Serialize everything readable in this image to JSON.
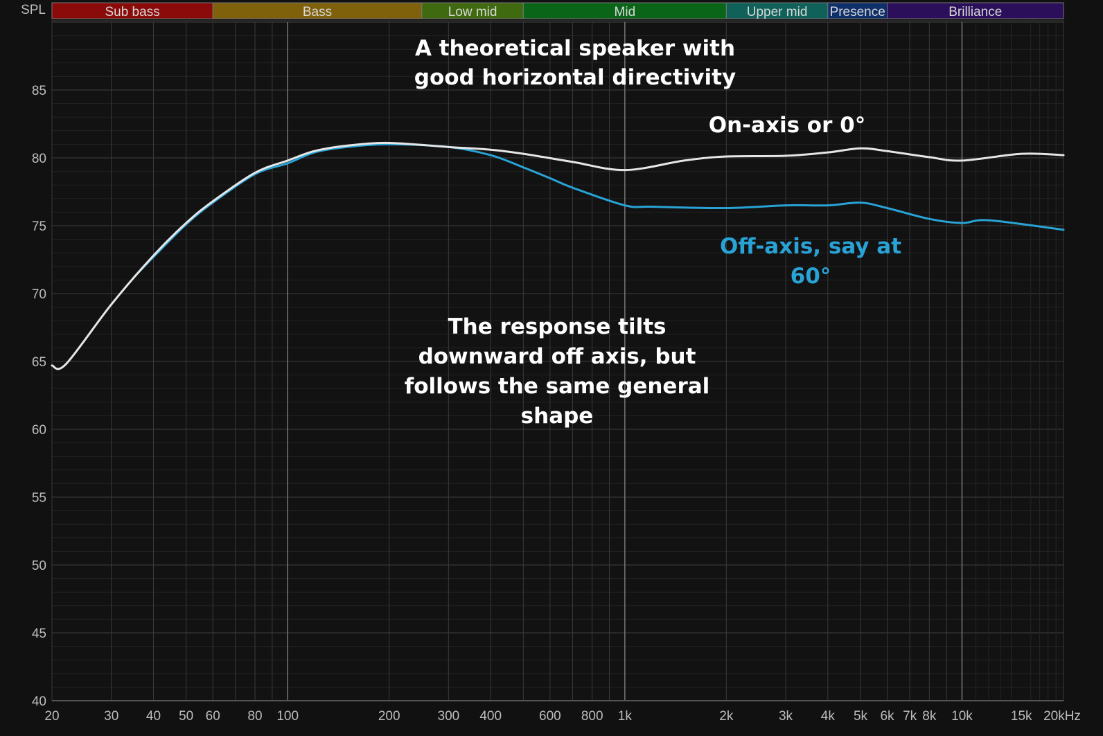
{
  "chart_data": {
    "type": "line",
    "title": "A theoretical speaker with good horizontal directivity",
    "ylabel": "SPL",
    "xlabel": "",
    "x_scale": "log",
    "xlim": [
      20,
      20000
    ],
    "ylim": [
      40,
      90
    ],
    "grid": true,
    "y_ticks": [
      40,
      45,
      50,
      55,
      60,
      65,
      70,
      75,
      80,
      85
    ],
    "x_ticks": [
      {
        "v": 20,
        "l": "20"
      },
      {
        "v": 30,
        "l": "30"
      },
      {
        "v": 40,
        "l": "40"
      },
      {
        "v": 50,
        "l": "50"
      },
      {
        "v": 60,
        "l": "60"
      },
      {
        "v": 80,
        "l": "80"
      },
      {
        "v": 100,
        "l": "100"
      },
      {
        "v": 200,
        "l": "200"
      },
      {
        "v": 300,
        "l": "300"
      },
      {
        "v": 400,
        "l": "400"
      },
      {
        "v": 600,
        "l": "600"
      },
      {
        "v": 800,
        "l": "800"
      },
      {
        "v": 1000,
        "l": "1k"
      },
      {
        "v": 2000,
        "l": "2k"
      },
      {
        "v": 3000,
        "l": "3k"
      },
      {
        "v": 4000,
        "l": "4k"
      },
      {
        "v": 5000,
        "l": "5k"
      },
      {
        "v": 6000,
        "l": "6k"
      },
      {
        "v": 7000,
        "l": "7k"
      },
      {
        "v": 8000,
        "l": "8k"
      },
      {
        "v": 10000,
        "l": "10k"
      },
      {
        "v": 15000,
        "l": "15k"
      },
      {
        "v": 20000,
        "l": "20kHz"
      }
    ],
    "bands": [
      {
        "name": "Sub bass",
        "from": 20,
        "to": 60,
        "color": "#8b0a0a"
      },
      {
        "name": "Bass",
        "from": 60,
        "to": 250,
        "color": "#80610b"
      },
      {
        "name": "Low mid",
        "from": 250,
        "to": 500,
        "color": "#3f6a10"
      },
      {
        "name": "Mid",
        "from": 500,
        "to": 2000,
        "color": "#0b6518"
      },
      {
        "name": "Upper mid",
        "from": 2000,
        "to": 4000,
        "color": "#0f6159"
      },
      {
        "name": "Presence",
        "from": 4000,
        "to": 6000,
        "color": "#0f2f6a"
      },
      {
        "name": "Brilliance",
        "from": 6000,
        "to": 20000,
        "color": "#2b0f5a"
      }
    ],
    "series": [
      {
        "name": "On-axis or 0°",
        "color": "#e6e6e6",
        "points": [
          [
            20,
            64.7
          ],
          [
            22,
            64.8
          ],
          [
            30,
            69.2
          ],
          [
            40,
            72.8
          ],
          [
            50,
            75.2
          ],
          [
            60,
            76.8
          ],
          [
            80,
            78.9
          ],
          [
            100,
            79.8
          ],
          [
            120,
            80.5
          ],
          [
            150,
            80.9
          ],
          [
            200,
            81.1
          ],
          [
            300,
            80.8
          ],
          [
            400,
            80.6
          ],
          [
            500,
            80.3
          ],
          [
            700,
            79.7
          ],
          [
            1000,
            79.1
          ],
          [
            1500,
            79.8
          ],
          [
            2000,
            80.1
          ],
          [
            3000,
            80.15
          ],
          [
            4000,
            80.4
          ],
          [
            5000,
            80.7
          ],
          [
            6000,
            80.5
          ],
          [
            8000,
            80.05
          ],
          [
            10000,
            79.8
          ],
          [
            15000,
            80.3
          ],
          [
            20000,
            80.2
          ]
        ]
      },
      {
        "name": "Off-axis, say at 60°",
        "color": "#29a3d6",
        "points": [
          [
            35,
            71.2
          ],
          [
            40,
            72.7
          ],
          [
            50,
            75.1
          ],
          [
            60,
            76.7
          ],
          [
            80,
            78.8
          ],
          [
            100,
            79.6
          ],
          [
            120,
            80.4
          ],
          [
            150,
            80.8
          ],
          [
            200,
            81.0
          ],
          [
            300,
            80.8
          ],
          [
            400,
            80.2
          ],
          [
            500,
            79.3
          ],
          [
            600,
            78.5
          ],
          [
            700,
            77.8
          ],
          [
            1000,
            76.5
          ],
          [
            1200,
            76.4
          ],
          [
            2000,
            76.3
          ],
          [
            3000,
            76.5
          ],
          [
            4000,
            76.5
          ],
          [
            5000,
            76.7
          ],
          [
            6000,
            76.3
          ],
          [
            8000,
            75.5
          ],
          [
            10000,
            75.2
          ],
          [
            12000,
            75.4
          ],
          [
            20000,
            74.7
          ]
        ]
      }
    ],
    "annotations": {
      "title_lines": [
        "A theoretical speaker with",
        "good horizontal directivity"
      ],
      "on_axis_label": "On-axis or 0°",
      "off_axis_lines": [
        "Off-axis, say at",
        "60°"
      ],
      "note_lines": [
        "The response tilts",
        "downward off axis, but",
        "follows the same general",
        "shape"
      ]
    }
  }
}
